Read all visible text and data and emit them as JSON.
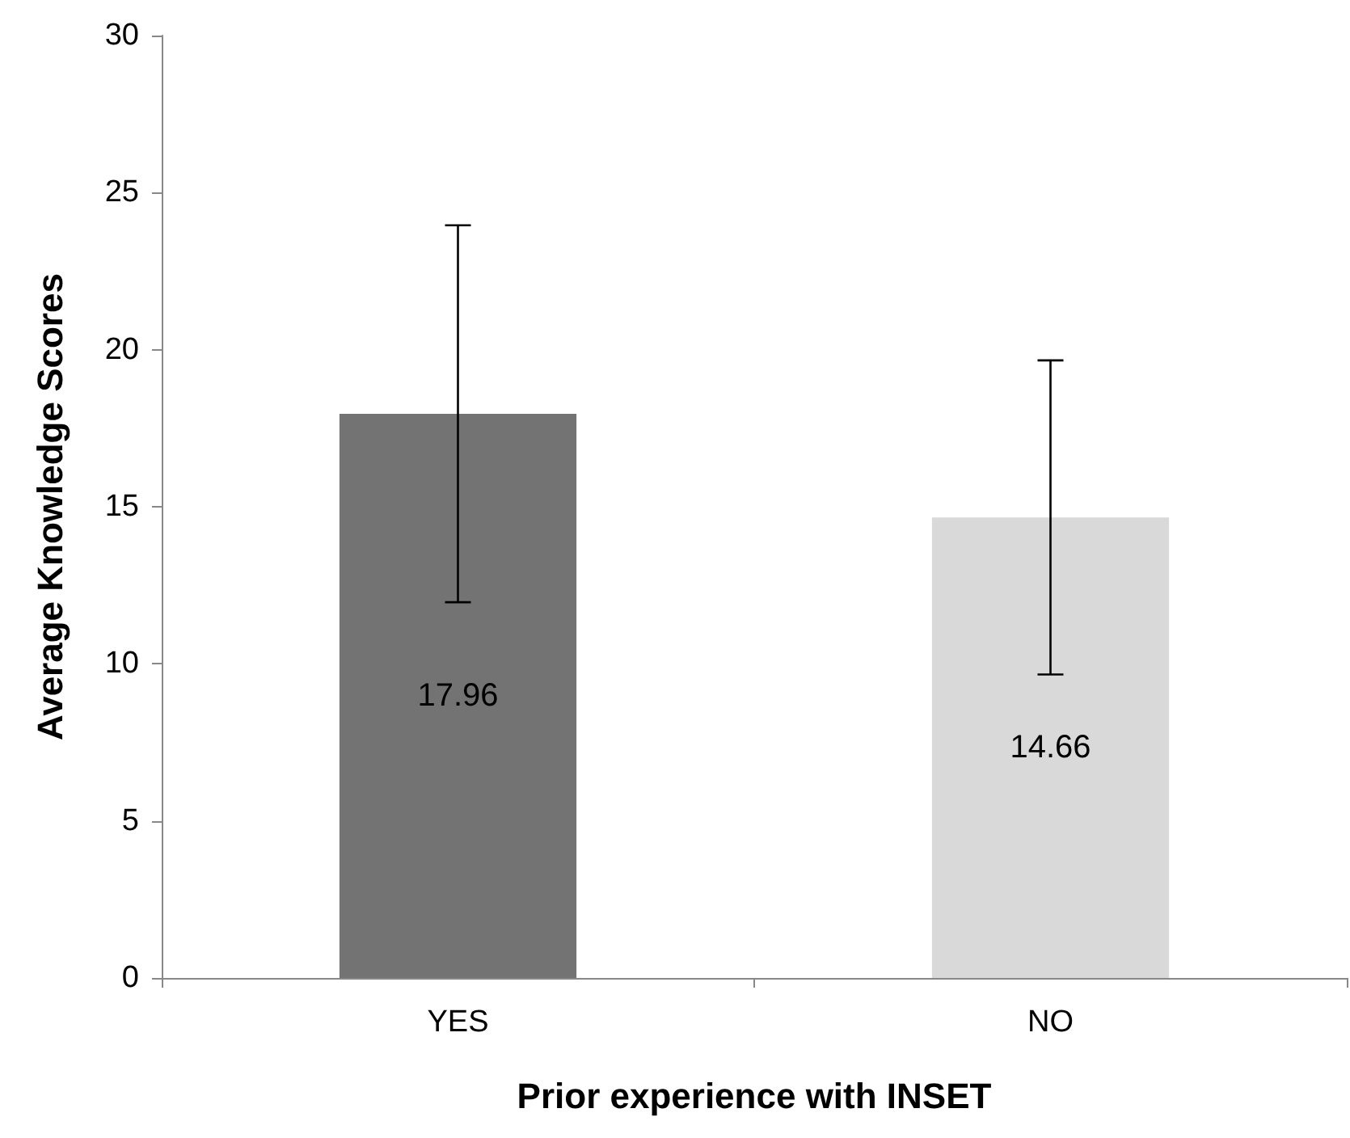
{
  "chart_data": {
    "type": "bar",
    "xlabel": "Prior experience with INSET",
    "ylabel": "Average Knowledge Scores",
    "categories": [
      "YES",
      "NO"
    ],
    "values": [
      17.96,
      14.66
    ],
    "colors": [
      "#737373",
      "#d9d9d9"
    ],
    "errors": [
      6,
      5
    ],
    "data_labels": true,
    "ylim": [
      0,
      30
    ],
    "yticks": [
      0,
      5,
      10,
      15,
      20,
      25,
      30
    ],
    "grid": false
  }
}
